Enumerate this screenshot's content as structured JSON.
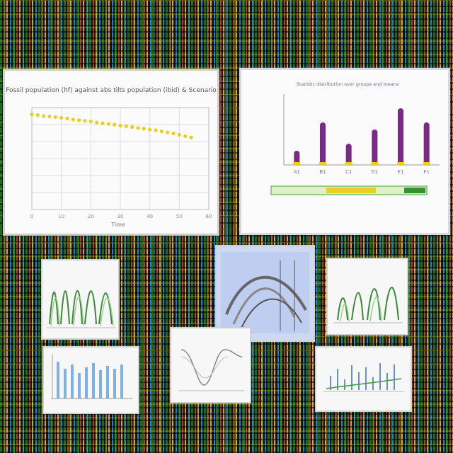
{
  "chart_data": [
    {
      "type": "scatter",
      "title": "Fossil population (hf) against abs tilts population (ibid) & Scenario",
      "xlabel": "Time",
      "ylabel": "",
      "xticks": [
        "0",
        "10",
        "20",
        "30",
        "40",
        "50",
        "60"
      ],
      "x": [
        0,
        2,
        4,
        6,
        8,
        10,
        12,
        14,
        16,
        18,
        20,
        22,
        24,
        26,
        28,
        30,
        32,
        34,
        36,
        38,
        40,
        42,
        44,
        46,
        48,
        50,
        52,
        54
      ],
      "y": [
        98,
        97.8,
        97.5,
        97.4,
        97.2,
        97,
        96.8,
        96.5,
        96.3,
        96.1,
        95.9,
        95.6,
        95.4,
        95.2,
        95,
        94.7,
        94.5,
        94.3,
        94,
        93.8,
        93.5,
        93.3,
        93,
        92.7,
        92.4,
        92,
        91.6,
        91.2
      ],
      "ylim": [
        70,
        100
      ],
      "xlim": [
        0,
        60
      ],
      "colors": {
        "points": "#e5d21e",
        "grid": "#d8dce6"
      },
      "grid": true
    },
    {
      "type": "bar",
      "title": "Statistic distribution over groups and means",
      "categories": [
        "A1",
        "B1",
        "C1",
        "D1",
        "E1",
        "F1"
      ],
      "values": [
        2,
        6,
        3,
        5,
        8,
        6
      ],
      "ylim": [
        0,
        10
      ],
      "colors": {
        "bars": "#7a2a86",
        "base": "#e8d020",
        "accent": "#4a9e3a"
      },
      "grid": false
    }
  ]
}
